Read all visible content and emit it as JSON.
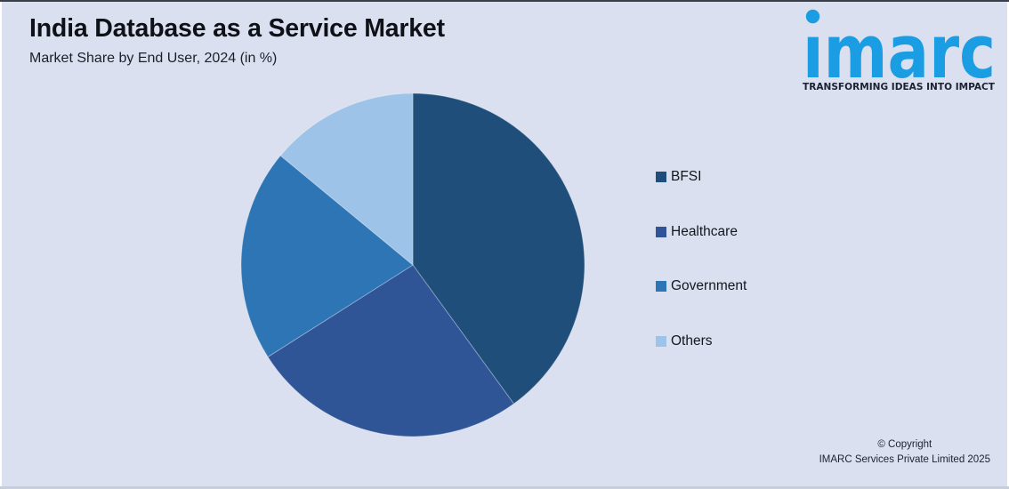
{
  "page": {
    "background_color": "#dae0ef"
  },
  "header": {
    "title": "India Database as a Service Market",
    "subtitle": "Market Share by End User, 2024 (in %)"
  },
  "logo": {
    "wordmark": "imarc",
    "tagline": "TRANSFORMING IDEAS INTO IMPACT",
    "brand_color": "#1a9de3",
    "tagline_color": "#1a2233"
  },
  "chart_data": {
    "type": "pie",
    "title": "India Database as a Service Market",
    "subtitle": "Market Share by End User, 2024 (in %)",
    "unit": "%",
    "start_angle_deg": 0,
    "direction": "clockwise",
    "legend_position": "right",
    "data_labels_shown": false,
    "categories": [
      "BFSI",
      "Healthcare",
      "Government",
      "Others"
    ],
    "series": [
      {
        "label": "BFSI",
        "value": 40,
        "color": "#1f4e7a"
      },
      {
        "label": "Healthcare",
        "value": 26,
        "color": "#2f5597"
      },
      {
        "label": "Government",
        "value": 20,
        "color": "#2e75b6"
      },
      {
        "label": "Others",
        "value": 14,
        "color": "#9ec3e8"
      }
    ]
  },
  "footer": {
    "copyright_line1": "© Copyright",
    "copyright_line2": "IMARC Services Private Limited 2025"
  }
}
